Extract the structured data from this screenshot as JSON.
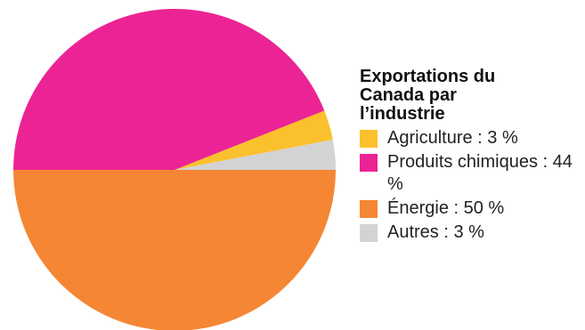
{
  "chart_data": {
    "type": "pie",
    "title": "Exportations du Canada par l’industrie",
    "slices": [
      {
        "label": "Agriculture : 3 %",
        "category": "Agriculture",
        "value": 3,
        "color": "#FBC02D"
      },
      {
        "label": "Produits chimiques : 44 %",
        "category": "Produits chimiques",
        "value": 44,
        "color": "#EC2394"
      },
      {
        "label": "Énergie : 50 %",
        "category": "Énergie",
        "value": 50,
        "color": "#F58634"
      },
      {
        "label": "Autres : 3 %",
        "category": "Autres",
        "value": 3,
        "color": "#D3D3D5"
      }
    ],
    "legend_position": "right"
  }
}
